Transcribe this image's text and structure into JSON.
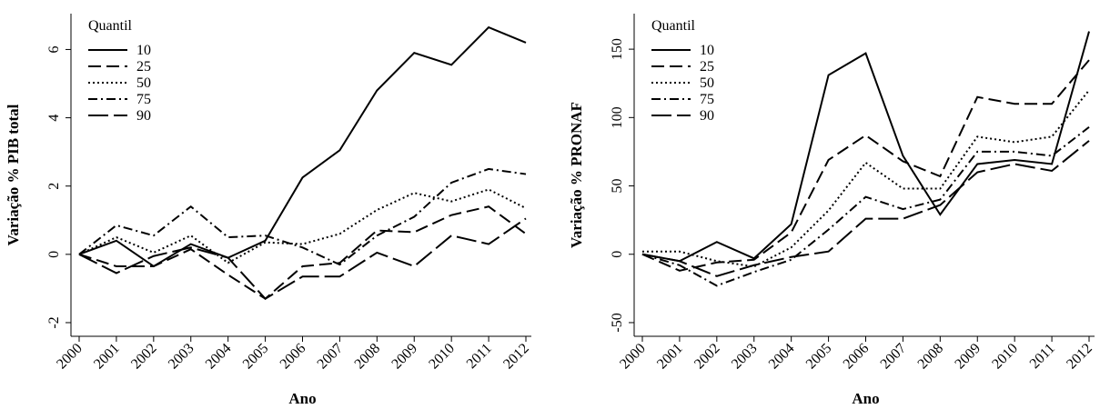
{
  "chart_data": [
    {
      "type": "line",
      "ylabel": "Variação % PIB total",
      "xlabel": "Ano",
      "legend_title": "Quantil",
      "legend": "upper left",
      "categories": [
        "2000",
        "2001",
        "2002",
        "2003",
        "2004",
        "2005",
        "2006",
        "2007",
        "2008",
        "2009",
        "2010",
        "2011",
        "2012"
      ],
      "ylim": [
        -2.4,
        7.05
      ],
      "yticks": [
        -2,
        0,
        2,
        4,
        6
      ],
      "series": [
        {
          "name": "10",
          "color": "#000000",
          "values": [
            0,
            0.4,
            -0.35,
            0.3,
            -0.1,
            0.4,
            2.25,
            3.05,
            4.8,
            5.9,
            5.55,
            6.65,
            6.2
          ]
        },
        {
          "name": "25",
          "color": "#000000",
          "values": [
            0,
            -0.35,
            -0.35,
            0.15,
            -0.6,
            -1.3,
            -0.35,
            -0.25,
            0.7,
            0.65,
            1.15,
            1.4,
            0.6
          ]
        },
        {
          "name": "50",
          "color": "#000000",
          "values": [
            0,
            0.5,
            0.05,
            0.55,
            -0.25,
            0.35,
            0.3,
            0.6,
            1.3,
            1.8,
            1.55,
            1.9,
            1.35
          ]
        },
        {
          "name": "75",
          "color": "#000000",
          "values": [
            0,
            0.85,
            0.55,
            1.4,
            0.5,
            0.55,
            0.2,
            -0.3,
            0.55,
            1.1,
            2.1,
            2.5,
            2.35
          ]
        },
        {
          "name": "90",
          "color": "#000000",
          "values": [
            0,
            -0.55,
            -0.05,
            0.2,
            -0.1,
            -1.3,
            -0.65,
            -0.65,
            0.05,
            -0.35,
            0.55,
            0.3,
            1.05
          ]
        }
      ]
    },
    {
      "type": "line",
      "ylabel": "Variação % PRONAF",
      "xlabel": "Ano",
      "legend_title": "Quantil",
      "legend": "upper left",
      "categories": [
        "2000",
        "2001",
        "2002",
        "2003",
        "2004",
        "2005",
        "2006",
        "2007",
        "2008",
        "2009",
        "2010",
        "2011",
        "2012"
      ],
      "ylim": [
        -60,
        176
      ],
      "yticks": [
        -50,
        0,
        50,
        100,
        150
      ],
      "series": [
        {
          "name": "10",
          "color": "#000000",
          "values": [
            0,
            -5,
            9,
            -3,
            22,
            131,
            147,
            72,
            29,
            66,
            69,
            66,
            163
          ]
        },
        {
          "name": "25",
          "color": "#000000",
          "values": [
            0,
            -12,
            -6,
            -4,
            16,
            69,
            87,
            68,
            57,
            115,
            110,
            110,
            142
          ]
        },
        {
          "name": "50",
          "color": "#000000",
          "values": [
            2,
            2,
            -5,
            -9,
            5,
            32,
            67,
            48,
            48,
            86,
            82,
            86,
            120
          ]
        },
        {
          "name": "75",
          "color": "#000000",
          "values": [
            0,
            -8,
            -23,
            -13,
            -4,
            18,
            42,
            33,
            40,
            75,
            75,
            72,
            93
          ]
        },
        {
          "name": "90",
          "color": "#000000",
          "values": [
            0,
            -5,
            -16,
            -8,
            -2,
            2,
            26,
            26,
            36,
            60,
            66,
            61,
            83
          ]
        }
      ]
    }
  ]
}
